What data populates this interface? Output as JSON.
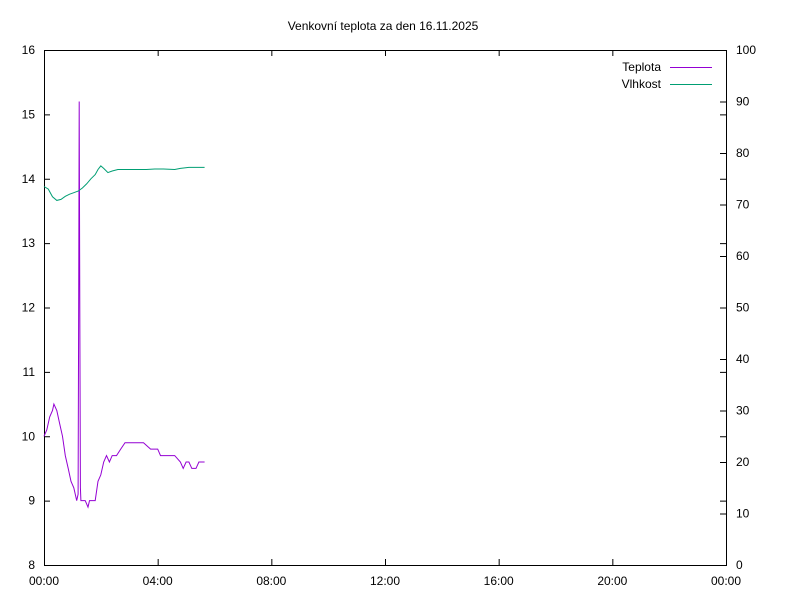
{
  "chart_data": {
    "type": "line",
    "title": "Venkovní teplota za den 16.11.2025",
    "x_axis": {
      "ticks": [
        "00:00",
        "04:00",
        "08:00",
        "12:00",
        "16:00",
        "20:00",
        "00:00"
      ],
      "range_hours": [
        0,
        24
      ]
    },
    "y_left": {
      "ticks": [
        8,
        9,
        10,
        11,
        12,
        13,
        14,
        15,
        16
      ],
      "range": [
        8,
        16
      ]
    },
    "y_right": {
      "ticks": [
        0,
        10,
        20,
        30,
        40,
        50,
        60,
        70,
        80,
        90,
        100
      ],
      "range": [
        0,
        100
      ]
    },
    "legend_position": "top-right",
    "grid": false,
    "series": [
      {
        "name": "Teplota",
        "axis": "left",
        "color": "#9400d3",
        "points": [
          [
            0.0,
            10.0
          ],
          [
            0.1,
            10.1
          ],
          [
            0.2,
            10.3
          ],
          [
            0.3,
            10.4
          ],
          [
            0.35,
            10.5
          ],
          [
            0.45,
            10.4
          ],
          [
            0.55,
            10.2
          ],
          [
            0.65,
            10.0
          ],
          [
            0.75,
            9.7
          ],
          [
            0.85,
            9.5
          ],
          [
            0.95,
            9.3
          ],
          [
            1.05,
            9.2
          ],
          [
            1.15,
            9.0
          ],
          [
            1.2,
            9.1
          ],
          [
            1.22,
            12.2
          ],
          [
            1.24,
            15.2
          ],
          [
            1.26,
            12.0
          ],
          [
            1.28,
            9.2
          ],
          [
            1.3,
            9.0
          ],
          [
            1.35,
            9.0
          ],
          [
            1.45,
            9.0
          ],
          [
            1.55,
            8.9
          ],
          [
            1.6,
            9.0
          ],
          [
            1.7,
            9.0
          ],
          [
            1.8,
            9.0
          ],
          [
            1.9,
            9.3
          ],
          [
            2.0,
            9.4
          ],
          [
            2.1,
            9.6
          ],
          [
            2.2,
            9.7
          ],
          [
            2.3,
            9.6
          ],
          [
            2.4,
            9.7
          ],
          [
            2.55,
            9.7
          ],
          [
            2.7,
            9.8
          ],
          [
            2.85,
            9.9
          ],
          [
            3.1,
            9.9
          ],
          [
            3.5,
            9.9
          ],
          [
            3.75,
            9.8
          ],
          [
            4.0,
            9.8
          ],
          [
            4.1,
            9.7
          ],
          [
            4.4,
            9.7
          ],
          [
            4.6,
            9.7
          ],
          [
            4.8,
            9.6
          ],
          [
            4.9,
            9.5
          ],
          [
            5.0,
            9.6
          ],
          [
            5.1,
            9.6
          ],
          [
            5.2,
            9.5
          ],
          [
            5.35,
            9.5
          ],
          [
            5.45,
            9.6
          ],
          [
            5.65,
            9.6
          ]
        ]
      },
      {
        "name": "Vlhkost",
        "axis": "right",
        "color": "#009e73",
        "points": [
          [
            0.0,
            73.5
          ],
          [
            0.15,
            73.0
          ],
          [
            0.3,
            71.5
          ],
          [
            0.45,
            70.8
          ],
          [
            0.6,
            71.0
          ],
          [
            0.75,
            71.6
          ],
          [
            0.9,
            72.0
          ],
          [
            1.05,
            72.3
          ],
          [
            1.2,
            72.6
          ],
          [
            1.35,
            73.2
          ],
          [
            1.5,
            74.0
          ],
          [
            1.65,
            75.0
          ],
          [
            1.8,
            75.8
          ],
          [
            1.9,
            76.8
          ],
          [
            2.0,
            77.5
          ],
          [
            2.1,
            77.0
          ],
          [
            2.25,
            76.2
          ],
          [
            2.4,
            76.5
          ],
          [
            2.6,
            76.8
          ],
          [
            3.0,
            76.8
          ],
          [
            3.4,
            76.8
          ],
          [
            3.6,
            76.8
          ],
          [
            3.9,
            76.9
          ],
          [
            4.2,
            76.9
          ],
          [
            4.6,
            76.8
          ],
          [
            4.8,
            77.0
          ],
          [
            5.1,
            77.2
          ],
          [
            5.4,
            77.2
          ],
          [
            5.65,
            77.2
          ]
        ]
      }
    ]
  }
}
